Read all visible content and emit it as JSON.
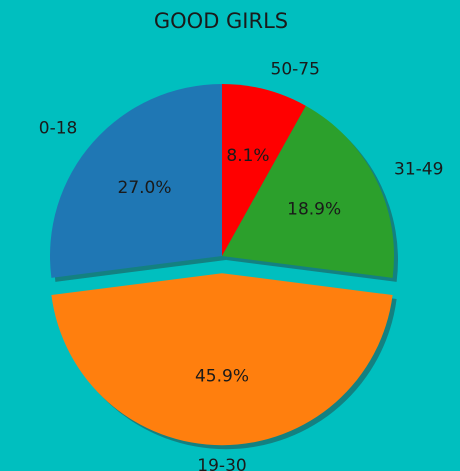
{
  "chart_data": {
    "type": "pie",
    "title": "GOOD GIRLS",
    "slices": [
      {
        "label": "50-75",
        "value": 8.1,
        "pct_label": "8.1%",
        "color": "#ff0000",
        "explode": false
      },
      {
        "label": "31-49",
        "value": 18.9,
        "pct_label": "18.9%",
        "color": "#2ca02c",
        "explode": false
      },
      {
        "label": "19-30",
        "value": 45.9,
        "pct_label": "45.9%",
        "color": "#ff7f0e",
        "explode": true
      },
      {
        "label": "0-18",
        "value": 27.0,
        "pct_label": "27.0%",
        "color": "#1f77b4",
        "explode": false
      }
    ],
    "start_angle": "top",
    "direction": "clockwise",
    "shadow": true,
    "legend": "none"
  },
  "colors": {
    "background": "#00bfbf",
    "shadow": "#1a6c6c"
  }
}
